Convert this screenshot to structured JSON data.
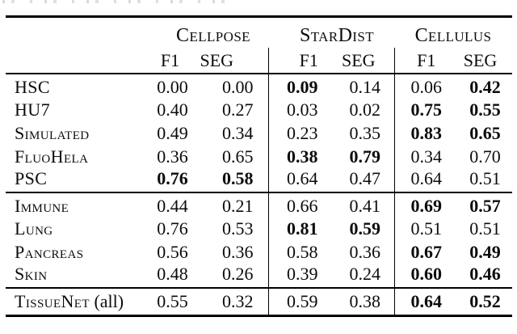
{
  "colors": {
    "background": "#ffffff",
    "text": "#0c0c0c",
    "rule": "#000000"
  },
  "table": {
    "header": {
      "groups": [
        {
          "name": "Cellpose"
        },
        {
          "name": "StarDist"
        },
        {
          "name": "Cellulus"
        }
      ],
      "metrics": [
        "F1",
        "SEG",
        "F1",
        "SEG",
        "F1",
        "SEG"
      ]
    },
    "sections": [
      {
        "rows": [
          {
            "label": "HSC",
            "suffix": "",
            "values": [
              {
                "v": "0.00",
                "b": false
              },
              {
                "v": "0.00",
                "b": false
              },
              {
                "v": "0.09",
                "b": true
              },
              {
                "v": "0.14",
                "b": false
              },
              {
                "v": "0.06",
                "b": false
              },
              {
                "v": "0.42",
                "b": true
              }
            ]
          },
          {
            "label": "HU7",
            "suffix": "",
            "values": [
              {
                "v": "0.40",
                "b": false
              },
              {
                "v": "0.27",
                "b": false
              },
              {
                "v": "0.03",
                "b": false
              },
              {
                "v": "0.02",
                "b": false
              },
              {
                "v": "0.75",
                "b": true
              },
              {
                "v": "0.55",
                "b": true
              }
            ]
          },
          {
            "label": "Simulated",
            "suffix": "",
            "values": [
              {
                "v": "0.49",
                "b": false
              },
              {
                "v": "0.34",
                "b": false
              },
              {
                "v": "0.23",
                "b": false
              },
              {
                "v": "0.35",
                "b": false
              },
              {
                "v": "0.83",
                "b": true
              },
              {
                "v": "0.65",
                "b": true
              }
            ]
          },
          {
            "label": "FluoHela",
            "suffix": "",
            "values": [
              {
                "v": "0.36",
                "b": false
              },
              {
                "v": "0.65",
                "b": false
              },
              {
                "v": "0.38",
                "b": true
              },
              {
                "v": "0.79",
                "b": true
              },
              {
                "v": "0.34",
                "b": false
              },
              {
                "v": "0.70",
                "b": false
              }
            ]
          },
          {
            "label": "PSC",
            "suffix": "",
            "values": [
              {
                "v": "0.76",
                "b": true
              },
              {
                "v": "0.58",
                "b": true
              },
              {
                "v": "0.64",
                "b": false
              },
              {
                "v": "0.47",
                "b": false
              },
              {
                "v": "0.64",
                "b": false
              },
              {
                "v": "0.51",
                "b": false
              }
            ]
          }
        ]
      },
      {
        "rows": [
          {
            "label": "Immune",
            "suffix": "",
            "values": [
              {
                "v": "0.44",
                "b": false
              },
              {
                "v": "0.21",
                "b": false
              },
              {
                "v": "0.66",
                "b": false
              },
              {
                "v": "0.41",
                "b": false
              },
              {
                "v": "0.69",
                "b": true
              },
              {
                "v": "0.57",
                "b": true
              }
            ]
          },
          {
            "label": "Lung",
            "suffix": "",
            "values": [
              {
                "v": "0.76",
                "b": false
              },
              {
                "v": "0.53",
                "b": false
              },
              {
                "v": "0.81",
                "b": true
              },
              {
                "v": "0.59",
                "b": true
              },
              {
                "v": "0.51",
                "b": false
              },
              {
                "v": "0.51",
                "b": false
              }
            ]
          },
          {
            "label": "Pancreas",
            "suffix": "",
            "values": [
              {
                "v": "0.56",
                "b": false
              },
              {
                "v": "0.36",
                "b": false
              },
              {
                "v": "0.58",
                "b": false
              },
              {
                "v": "0.36",
                "b": false
              },
              {
                "v": "0.67",
                "b": true
              },
              {
                "v": "0.49",
                "b": true
              }
            ]
          },
          {
            "label": "Skin",
            "suffix": "",
            "values": [
              {
                "v": "0.48",
                "b": false
              },
              {
                "v": "0.26",
                "b": false
              },
              {
                "v": "0.39",
                "b": false
              },
              {
                "v": "0.24",
                "b": false
              },
              {
                "v": "0.60",
                "b": true
              },
              {
                "v": "0.46",
                "b": true
              }
            ]
          }
        ]
      },
      {
        "rows": [
          {
            "label": "TissueNet",
            "suffix": " (all)",
            "values": [
              {
                "v": "0.55",
                "b": false
              },
              {
                "v": "0.32",
                "b": false
              },
              {
                "v": "0.59",
                "b": false
              },
              {
                "v": "0.38",
                "b": false
              },
              {
                "v": "0.64",
                "b": true
              },
              {
                "v": "0.52",
                "b": true
              }
            ]
          }
        ]
      }
    ]
  }
}
